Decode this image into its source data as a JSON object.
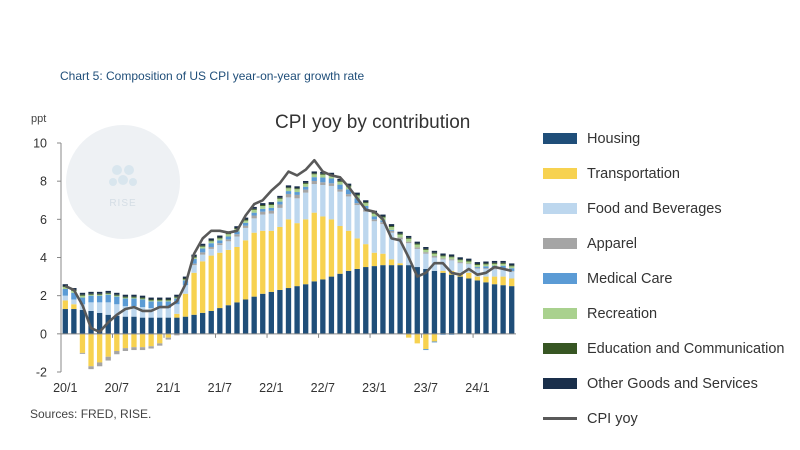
{
  "caption": "Chart 5: Composition of US CPI year-on-year growth rate",
  "source": "Sources: FRED, RISE.",
  "watermark": {
    "text": "RISE"
  },
  "chart_data": {
    "type": "bar",
    "stacked": true,
    "title": "CPI yoy by contribution",
    "ylabel": "ppt",
    "xlabel": "",
    "ylim": [
      -2,
      10
    ],
    "yticks": [
      "-2",
      "0",
      "2",
      "4",
      "6",
      "8",
      "10"
    ],
    "ytick_values": [
      -2,
      0,
      2,
      4,
      6,
      8,
      10
    ],
    "xtick_labels": [
      "20/1",
      "20/7",
      "21/1",
      "21/7",
      "22/1",
      "22/7",
      "23/1",
      "23/7",
      "24/1"
    ],
    "xtick_index": [
      0,
      6,
      12,
      18,
      24,
      30,
      36,
      42,
      48
    ],
    "categories": [
      "2020-01",
      "2020-02",
      "2020-03",
      "2020-04",
      "2020-05",
      "2020-06",
      "2020-07",
      "2020-08",
      "2020-09",
      "2020-10",
      "2020-11",
      "2020-12",
      "2021-01",
      "2021-02",
      "2021-03",
      "2021-04",
      "2021-05",
      "2021-06",
      "2021-07",
      "2021-08",
      "2021-09",
      "2021-10",
      "2021-11",
      "2021-12",
      "2022-01",
      "2022-02",
      "2022-03",
      "2022-04",
      "2022-05",
      "2022-06",
      "2022-07",
      "2022-08",
      "2022-09",
      "2022-10",
      "2022-11",
      "2022-12",
      "2023-01",
      "2023-02",
      "2023-03",
      "2023-04",
      "2023-05",
      "2023-06",
      "2023-07",
      "2023-08",
      "2023-09",
      "2023-10",
      "2023-11",
      "2023-12",
      "2024-01",
      "2024-02",
      "2024-03",
      "2024-04",
      "2024-05"
    ],
    "series": [
      {
        "name": "Housing",
        "color": "#1f4e79",
        "values": [
          1.3,
          1.3,
          1.25,
          1.2,
          1.1,
          1.0,
          0.95,
          0.9,
          0.9,
          0.85,
          0.85,
          0.85,
          0.85,
          0.85,
          0.9,
          1.0,
          1.1,
          1.2,
          1.35,
          1.5,
          1.65,
          1.8,
          1.95,
          2.1,
          2.2,
          2.3,
          2.4,
          2.5,
          2.6,
          2.75,
          2.85,
          3.0,
          3.15,
          3.3,
          3.4,
          3.5,
          3.55,
          3.6,
          3.6,
          3.6,
          3.6,
          3.5,
          3.4,
          3.3,
          3.2,
          3.1,
          3.0,
          2.9,
          2.8,
          2.7,
          2.6,
          2.55,
          2.5
        ]
      },
      {
        "name": "Transportation",
        "color": "#f7d250",
        "values": [
          0.45,
          0.25,
          -1.0,
          -1.7,
          -1.5,
          -1.2,
          -0.9,
          -0.75,
          -0.7,
          -0.7,
          -0.65,
          -0.5,
          -0.2,
          0.2,
          1.2,
          2.2,
          2.7,
          2.9,
          2.9,
          2.9,
          2.9,
          3.1,
          3.35,
          3.3,
          3.2,
          3.3,
          3.6,
          3.3,
          3.4,
          3.6,
          3.3,
          3.0,
          2.5,
          2.1,
          1.6,
          1.2,
          0.7,
          0.6,
          0.3,
          0.1,
          -0.2,
          -0.5,
          -0.8,
          -0.4,
          0.1,
          0.2,
          0.2,
          0.3,
          0.2,
          0.3,
          0.4,
          0.45,
          0.4
        ]
      },
      {
        "name": "Food and Beverages",
        "color": "#bdd7ee",
        "values": [
          0.25,
          0.25,
          0.3,
          0.45,
          0.55,
          0.65,
          0.6,
          0.55,
          0.55,
          0.55,
          0.5,
          0.5,
          0.5,
          0.5,
          0.45,
          0.4,
          0.35,
          0.35,
          0.4,
          0.45,
          0.55,
          0.65,
          0.75,
          0.85,
          0.9,
          1.0,
          1.15,
          1.3,
          1.4,
          1.5,
          1.65,
          1.75,
          1.8,
          1.8,
          1.75,
          1.7,
          1.65,
          1.55,
          1.4,
          1.25,
          1.15,
          0.95,
          0.8,
          0.7,
          0.6,
          0.55,
          0.5,
          0.45,
          0.42,
          0.4,
          0.38,
          0.38,
          0.36
        ]
      },
      {
        "name": "Apparel",
        "color": "#a5a5a5",
        "values": [
          0.0,
          0.0,
          -0.05,
          -0.15,
          -0.2,
          -0.2,
          -0.17,
          -0.15,
          -0.15,
          -0.15,
          -0.12,
          -0.12,
          -0.1,
          -0.08,
          -0.03,
          0.08,
          0.12,
          0.1,
          0.1,
          0.1,
          0.12,
          0.12,
          0.15,
          0.15,
          0.15,
          0.18,
          0.18,
          0.18,
          0.16,
          0.16,
          0.14,
          0.14,
          0.12,
          0.12,
          0.1,
          0.1,
          0.1,
          0.1,
          0.1,
          0.1,
          0.08,
          0.08,
          0.08,
          0.08,
          0.06,
          0.06,
          0.06,
          0.04,
          0.04,
          0.04,
          0.04,
          0.04,
          0.03
        ]
      },
      {
        "name": "Medical Care",
        "color": "#5b9bd5",
        "values": [
          0.35,
          0.35,
          0.35,
          0.35,
          0.35,
          0.4,
          0.4,
          0.4,
          0.4,
          0.4,
          0.35,
          0.35,
          0.35,
          0.3,
          0.25,
          0.25,
          0.2,
          0.2,
          0.15,
          0.15,
          0.15,
          0.15,
          0.15,
          0.15,
          0.15,
          0.15,
          0.15,
          0.15,
          0.15,
          0.2,
          0.25,
          0.25,
          0.25,
          0.25,
          0.25,
          0.2,
          0.15,
          0.1,
          0.05,
          0.0,
          0.0,
          0.0,
          -0.05,
          -0.05,
          -0.05,
          -0.05,
          0.0,
          0.0,
          0.05,
          0.1,
          0.15,
          0.15,
          0.15
        ]
      },
      {
        "name": "Recreation",
        "color": "#a9d18e",
        "values": [
          0.1,
          0.1,
          0.1,
          0.05,
          0.05,
          0.05,
          0.05,
          0.05,
          0.05,
          0.05,
          0.05,
          0.05,
          0.05,
          0.05,
          0.05,
          0.07,
          0.1,
          0.1,
          0.1,
          0.12,
          0.12,
          0.12,
          0.15,
          0.15,
          0.15,
          0.15,
          0.15,
          0.15,
          0.15,
          0.15,
          0.15,
          0.15,
          0.15,
          0.15,
          0.15,
          0.15,
          0.15,
          0.15,
          0.15,
          0.15,
          0.15,
          0.15,
          0.12,
          0.12,
          0.1,
          0.1,
          0.1,
          0.1,
          0.1,
          0.1,
          0.1,
          0.1,
          0.1
        ]
      },
      {
        "name": "Education and Communication",
        "color": "#375623",
        "values": [
          0.05,
          0.05,
          0.05,
          0.05,
          0.05,
          0.05,
          0.05,
          0.05,
          0.05,
          0.05,
          0.05,
          0.05,
          0.05,
          0.05,
          0.05,
          0.05,
          0.05,
          0.05,
          0.05,
          0.05,
          0.05,
          0.05,
          0.05,
          0.05,
          0.05,
          0.05,
          0.05,
          0.05,
          0.05,
          0.05,
          0.05,
          0.05,
          0.05,
          0.05,
          0.05,
          0.05,
          0.05,
          0.05,
          0.05,
          0.05,
          0.05,
          0.05,
          0.05,
          0.05,
          0.05,
          0.05,
          0.05,
          0.05,
          0.05,
          0.05,
          0.05,
          0.05,
          0.05
        ]
      },
      {
        "name": "Other Goods and Services",
        "color": "#1a2f4b",
        "values": [
          0.1,
          0.1,
          0.1,
          0.1,
          0.1,
          0.1,
          0.1,
          0.1,
          0.1,
          0.1,
          0.1,
          0.1,
          0.1,
          0.1,
          0.1,
          0.1,
          0.1,
          0.1,
          0.1,
          0.1,
          0.1,
          0.1,
          0.1,
          0.1,
          0.1,
          0.1,
          0.1,
          0.1,
          0.1,
          0.1,
          0.1,
          0.1,
          0.1,
          0.1,
          0.1,
          0.1,
          0.1,
          0.1,
          0.1,
          0.1,
          0.1,
          0.1,
          0.1,
          0.1,
          0.1,
          0.1,
          0.1,
          0.1,
          0.1,
          0.1,
          0.1,
          0.1,
          0.1
        ]
      },
      {
        "name": "CPI yoy",
        "type": "line",
        "color": "#595959",
        "values": [
          2.5,
          2.3,
          1.5,
          0.3,
          0.1,
          0.6,
          1.0,
          1.3,
          1.4,
          1.2,
          1.2,
          1.4,
          1.4,
          1.7,
          2.6,
          4.2,
          5.0,
          5.4,
          5.4,
          5.3,
          5.4,
          6.2,
          6.8,
          7.0,
          7.5,
          7.9,
          8.5,
          8.3,
          8.6,
          9.1,
          8.5,
          8.3,
          8.2,
          7.7,
          7.1,
          6.5,
          6.4,
          6.0,
          5.0,
          4.9,
          4.0,
          3.0,
          3.2,
          3.7,
          3.7,
          3.2,
          3.1,
          3.4,
          3.1,
          3.2,
          3.5,
          3.4,
          3.3
        ]
      }
    ]
  }
}
